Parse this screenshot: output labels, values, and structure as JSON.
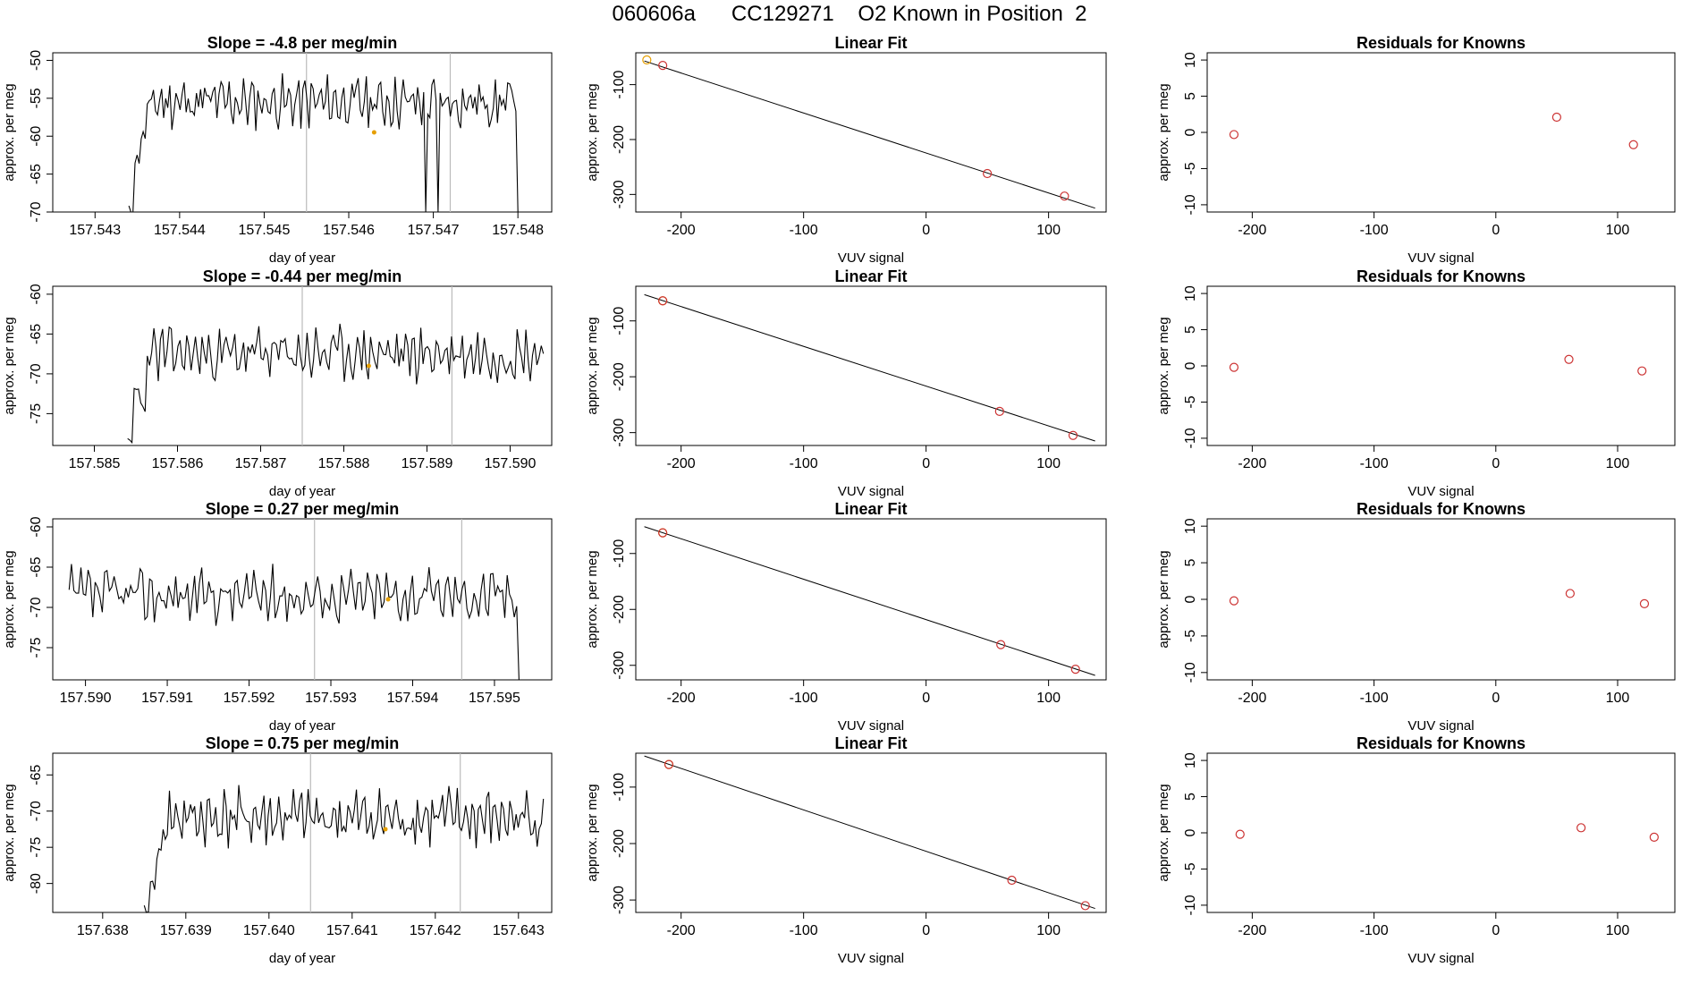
{
  "page_title": "060606a      CC129271    O2 Known in Position  2",
  "rows": [
    {
      "slope_title": "Slope =  -4.8  per meg/min",
      "fit_title": "Linear Fit",
      "resid_title": "Residuals for Knowns"
    },
    {
      "slope_title": "Slope =  -0.44  per meg/min",
      "fit_title": "Linear Fit",
      "resid_title": "Residuals for Knowns"
    },
    {
      "slope_title": "Slope =  0.27  per meg/min",
      "fit_title": "Linear Fit",
      "resid_title": "Residuals for Knowns"
    },
    {
      "slope_title": "Slope =  0.75  per meg/min",
      "fit_title": "Linear Fit",
      "resid_title": "Residuals for Knowns"
    }
  ],
  "chart_data": [
    {
      "type": "line",
      "panel": "timeseries",
      "row": 0,
      "title": "Slope =  -4.8  per meg/min",
      "xlabel": "day of year",
      "ylabel": "approx. per meg",
      "xlim": [
        157.5425,
        157.5484
      ],
      "ylim": [
        -70,
        -49
      ],
      "xticks": [
        "157.543",
        "157.544",
        "157.545",
        "157.546",
        "157.547",
        "157.548"
      ],
      "yticks": [
        "-50",
        "-55",
        "-60",
        "-65",
        "-70"
      ],
      "start": 157.5434,
      "end": 157.548,
      "rise": [
        -70,
        -63,
        -60,
        -56
      ],
      "base": -55.5,
      "amp": 2.5,
      "seed": 11,
      "vlines": [
        157.5455,
        157.5472
      ],
      "marker": {
        "x": 157.5463,
        "y": -59.5
      },
      "dips": [
        {
          "x": 157.5469,
          "y": -72
        },
        {
          "x": 157.54705,
          "y": -72
        }
      ]
    },
    {
      "type": "line",
      "panel": "timeseries",
      "row": 1,
      "title": "Slope =  -0.44  per meg/min",
      "xlabel": "day of year",
      "ylabel": "approx. per meg",
      "xlim": [
        157.5845,
        157.5905
      ],
      "ylim": [
        -79,
        -59
      ],
      "xticks": [
        "157.585",
        "157.586",
        "157.587",
        "157.588",
        "157.589",
        "157.590"
      ],
      "yticks": [
        "-60",
        "-65",
        "-70",
        "-75"
      ],
      "start": 157.5854,
      "end": 157.5904,
      "rise": [
        -79,
        -72,
        -74,
        -68
      ],
      "base": -67.5,
      "amp": 2.5,
      "seed": 23,
      "vlines": [
        157.5875,
        157.5893
      ],
      "marker": {
        "x": 157.5883,
        "y": -69
      },
      "dips": []
    },
    {
      "type": "line",
      "panel": "timeseries",
      "row": 2,
      "title": "Slope =  0.27  per meg/min",
      "xlabel": "day of year",
      "ylabel": "approx. per meg",
      "xlim": [
        157.5896,
        157.5957
      ],
      "ylim": [
        -79,
        -59
      ],
      "xticks": [
        "157.590",
        "157.591",
        "157.592",
        "157.593",
        "157.594",
        "157.595"
      ],
      "yticks": [
        "-60",
        "-65",
        "-70",
        "-75"
      ],
      "start": 157.5898,
      "end": 157.5953,
      "rise": [],
      "base": -68.5,
      "amp": 2.5,
      "seed": 37,
      "vlines": [
        157.5928,
        157.5946
      ],
      "marker": {
        "x": 157.5937,
        "y": -69
      },
      "dips": [
        {
          "x": 157.59535,
          "y": -80
        }
      ]
    },
    {
      "type": "line",
      "panel": "timeseries",
      "row": 3,
      "title": "Slope =  0.75  per meg/min",
      "xlabel": "day of year",
      "ylabel": "approx. per meg",
      "xlim": [
        157.6374,
        157.6434
      ],
      "ylim": [
        -84,
        -62
      ],
      "xticks": [
        "157.638",
        "157.639",
        "157.640",
        "157.641",
        "157.642",
        "157.643"
      ],
      "yticks": [
        "-65",
        "-70",
        "-75",
        "-80"
      ],
      "start": 157.6385,
      "end": 157.6433,
      "rise": [
        -84,
        -80,
        -76
      ],
      "base": -71,
      "amp": 3,
      "seed": 41,
      "vlines": [
        157.6405,
        157.6423
      ],
      "marker": {
        "x": 157.6414,
        "y": -72.5
      },
      "dips": []
    },
    {
      "type": "scatter",
      "panel": "linear_fit",
      "row": 0,
      "title": "Linear Fit",
      "xlabel": "VUV signal",
      "ylabel": "approx. per meg",
      "xlim": [
        -237,
        147
      ],
      "ylim": [
        -332,
        -42
      ],
      "xticks": [
        -200,
        -100,
        0,
        100
      ],
      "yticks": [
        -100,
        -200,
        -300
      ],
      "line": {
        "x": [
          -230,
          138
        ],
        "y": [
          -57,
          -325
        ]
      },
      "points": [
        {
          "x": -228,
          "y": -55,
          "color": "#e69f00"
        },
        {
          "x": -215,
          "y": -65,
          "color": "#cc3333"
        },
        {
          "x": 50,
          "y": -262,
          "color": "#cc3333"
        },
        {
          "x": 113,
          "y": -303,
          "color": "#cc3333"
        }
      ]
    },
    {
      "type": "scatter",
      "panel": "linear_fit",
      "row": 1,
      "title": "Linear Fit",
      "xlabel": "VUV signal",
      "ylabel": "approx. per meg",
      "xlim": [
        -237,
        147
      ],
      "ylim": [
        -323,
        -38
      ],
      "xticks": [
        -200,
        -100,
        0,
        100
      ],
      "yticks": [
        -100,
        -200,
        -300
      ],
      "line": {
        "x": [
          -230,
          138
        ],
        "y": [
          -53,
          -315
        ]
      },
      "points": [
        {
          "x": -215,
          "y": -64,
          "color": "#e69f00"
        },
        {
          "x": -215,
          "y": -64,
          "color": "#cc3333"
        },
        {
          "x": 60,
          "y": -262,
          "color": "#cc3333"
        },
        {
          "x": 120,
          "y": -305,
          "color": "#cc3333"
        }
      ]
    },
    {
      "type": "scatter",
      "panel": "linear_fit",
      "row": 2,
      "title": "Linear Fit",
      "xlabel": "VUV signal",
      "ylabel": "approx. per meg",
      "xlim": [
        -237,
        147
      ],
      "ylim": [
        -326,
        -38
      ],
      "xticks": [
        -200,
        -100,
        0,
        100
      ],
      "yticks": [
        -100,
        -200,
        -300
      ],
      "line": {
        "x": [
          -230,
          138
        ],
        "y": [
          -52,
          -318
        ]
      },
      "points": [
        {
          "x": -215,
          "y": -63,
          "color": "#e69f00"
        },
        {
          "x": -215,
          "y": -63,
          "color": "#cc3333"
        },
        {
          "x": 61,
          "y": -263,
          "color": "#cc3333"
        },
        {
          "x": 122,
          "y": -307,
          "color": "#cc3333"
        }
      ]
    },
    {
      "type": "scatter",
      "panel": "linear_fit",
      "row": 3,
      "title": "Linear Fit",
      "xlabel": "VUV signal",
      "ylabel": "approx. per meg",
      "xlim": [
        -237,
        147
      ],
      "ylim": [
        -322,
        -40
      ],
      "xticks": [
        -200,
        -100,
        0,
        100
      ],
      "yticks": [
        -100,
        -200,
        -300
      ],
      "line": {
        "x": [
          -230,
          138
        ],
        "y": [
          -45,
          -315
        ]
      },
      "points": [
        {
          "x": -210,
          "y": -60,
          "color": "#e69f00"
        },
        {
          "x": -210,
          "y": -60,
          "color": "#cc3333"
        },
        {
          "x": 70,
          "y": -265,
          "color": "#cc3333"
        },
        {
          "x": 130,
          "y": -310,
          "color": "#cc3333"
        }
      ]
    },
    {
      "type": "scatter",
      "panel": "residuals",
      "row": 0,
      "title": "Residuals for Knowns",
      "xlabel": "VUV signal",
      "ylabel": "approx. per meg",
      "xlim": [
        -237,
        147
      ],
      "ylim": [
        -11,
        11
      ],
      "xticks": [
        -200,
        -100,
        0,
        100
      ],
      "yticks": [
        10,
        5,
        0,
        -5,
        -10
      ],
      "points": [
        {
          "x": -215,
          "y": -0.3
        },
        {
          "x": 50,
          "y": 2.1
        },
        {
          "x": 113,
          "y": -1.7
        }
      ]
    },
    {
      "type": "scatter",
      "panel": "residuals",
      "row": 1,
      "title": "Residuals for Knowns",
      "xlabel": "VUV signal",
      "ylabel": "approx. per meg",
      "xlim": [
        -237,
        147
      ],
      "ylim": [
        -11,
        11
      ],
      "xticks": [
        -200,
        -100,
        0,
        100
      ],
      "yticks": [
        10,
        5,
        0,
        -5,
        -10
      ],
      "points": [
        {
          "x": -215,
          "y": -0.2
        },
        {
          "x": 60,
          "y": 0.9
        },
        {
          "x": 120,
          "y": -0.7
        }
      ]
    },
    {
      "type": "scatter",
      "panel": "residuals",
      "row": 2,
      "title": "Residuals for Knowns",
      "xlabel": "VUV signal",
      "ylabel": "approx. per meg",
      "xlim": [
        -237,
        147
      ],
      "ylim": [
        -11,
        11
      ],
      "xticks": [
        -200,
        -100,
        0,
        100
      ],
      "yticks": [
        10,
        5,
        0,
        -5,
        -10
      ],
      "points": [
        {
          "x": -215,
          "y": -0.2
        },
        {
          "x": 61,
          "y": 0.8
        },
        {
          "x": 122,
          "y": -0.6
        }
      ]
    },
    {
      "type": "scatter",
      "panel": "residuals",
      "row": 3,
      "title": "Residuals for Knowns",
      "xlabel": "VUV signal",
      "ylabel": "approx. per meg",
      "xlim": [
        -237,
        147
      ],
      "ylim": [
        -11,
        11
      ],
      "xticks": [
        -200,
        -100,
        0,
        100
      ],
      "yticks": [
        10,
        5,
        0,
        -5,
        -10
      ],
      "points": [
        {
          "x": -210,
          "y": -0.2
        },
        {
          "x": 70,
          "y": 0.7
        },
        {
          "x": 130,
          "y": -0.6
        }
      ]
    }
  ]
}
